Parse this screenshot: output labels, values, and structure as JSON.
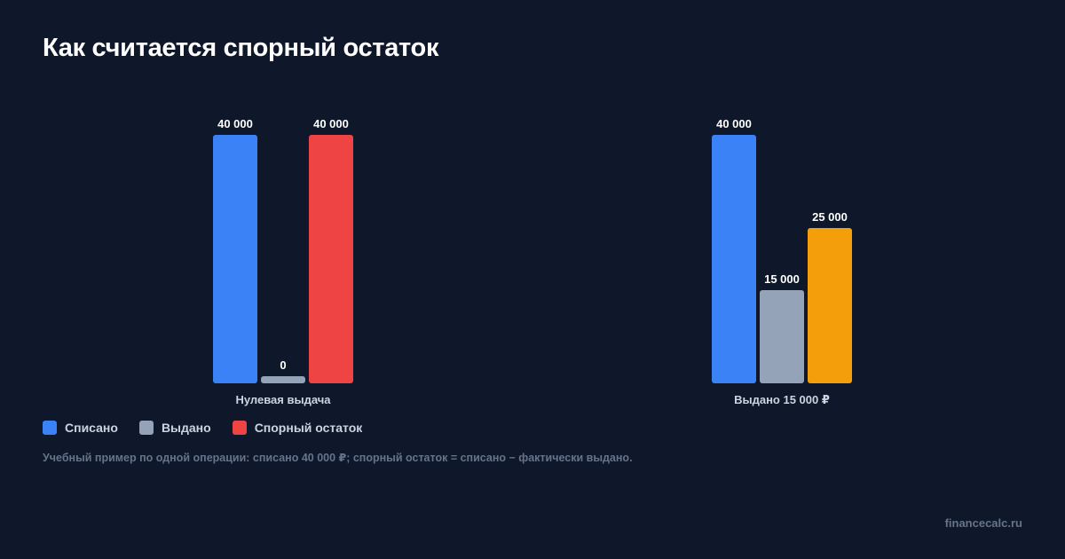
{
  "title": "Как считается спорный остаток",
  "colors": {
    "background": "#0f172a",
    "written_off": "#3b82f6",
    "issued": "#94a3b8",
    "disputed_zero": "#ef4444",
    "disputed_partial": "#f59e0b"
  },
  "chart_data": {
    "type": "bar",
    "title": "Как считается спорный остаток",
    "ylim": [
      0,
      40000
    ],
    "grid": false,
    "legend_position": "bottom-left",
    "groups": [
      {
        "category": "Нулевая выдача",
        "bars": [
          {
            "series": "Списано",
            "value": 40000,
            "label": "40 000",
            "color": "#3b82f6"
          },
          {
            "series": "Выдано",
            "value": 0,
            "label": "0",
            "color": "#94a3b8"
          },
          {
            "series": "Спорный остаток",
            "value": 40000,
            "label": "40 000",
            "color": "#ef4444"
          }
        ]
      },
      {
        "category": "Выдано 15 000 ₽",
        "bars": [
          {
            "series": "Списано",
            "value": 40000,
            "label": "40 000",
            "color": "#3b82f6"
          },
          {
            "series": "Выдано",
            "value": 15000,
            "label": "15 000",
            "color": "#94a3b8"
          },
          {
            "series": "Спорный остаток",
            "value": 25000,
            "label": "25 000",
            "color": "#f59e0b"
          }
        ]
      }
    ]
  },
  "legend": [
    {
      "label": "Списано",
      "color": "#3b82f6"
    },
    {
      "label": "Выдано",
      "color": "#94a3b8"
    },
    {
      "label": "Спорный остаток",
      "color": "#ef4444"
    }
  ],
  "note": "Учебный пример по одной операции: списано 40 000 ₽; спорный остаток = списано − фактически выдано.",
  "watermark": "financecalc.ru"
}
